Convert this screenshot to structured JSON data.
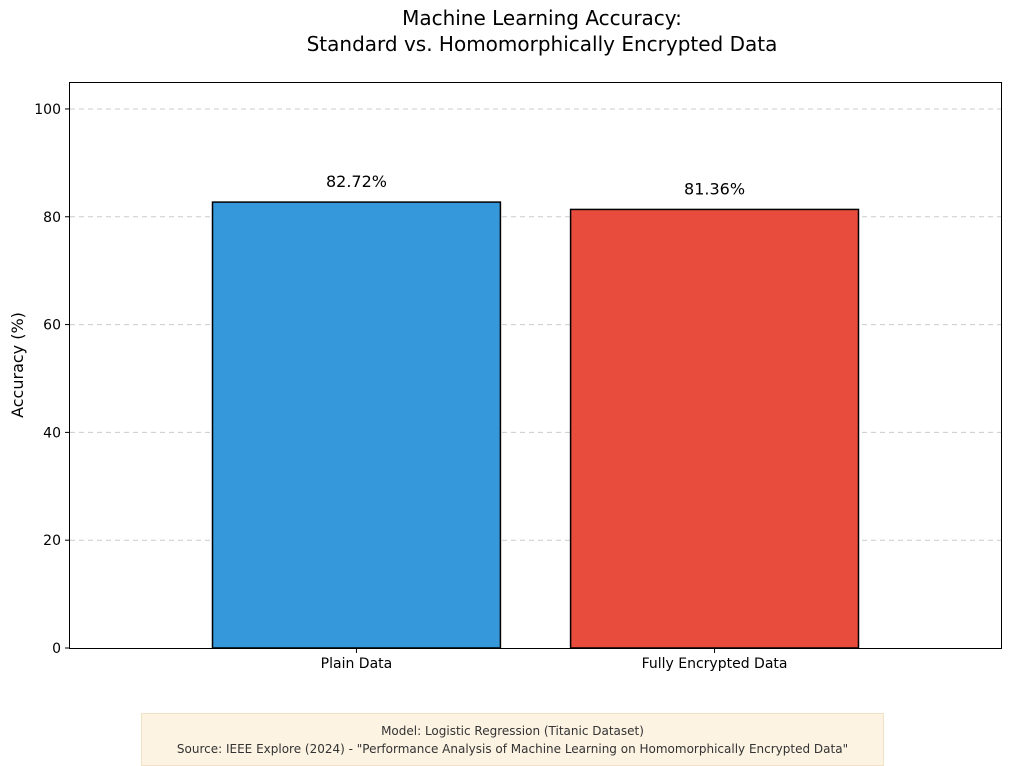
{
  "chart_data": {
    "type": "bar",
    "title": [
      "Machine Learning Accuracy:",
      "Standard vs. Homomorphically Encrypted Data"
    ],
    "categories": [
      "Plain Data",
      "Fully Encrypted Data"
    ],
    "values": [
      82.72,
      81.36
    ],
    "value_labels": [
      "82.72%",
      "81.36%"
    ],
    "colors": [
      "#3498db",
      "#e74c3c"
    ],
    "xlabel": "",
    "ylabel": "Accuracy (%)",
    "ylim": [
      0,
      105
    ],
    "yticks": [
      0,
      20,
      40,
      60,
      80,
      100
    ],
    "grid": "horizontal-dashed",
    "legend": "none"
  },
  "footnote": {
    "line1": "Model: Logistic Regression (Titanic Dataset)",
    "line2": "Source: IEEE Explore (2024) - \"Performance Analysis of Machine Learning on Homomorphically Encrypted Data\""
  }
}
